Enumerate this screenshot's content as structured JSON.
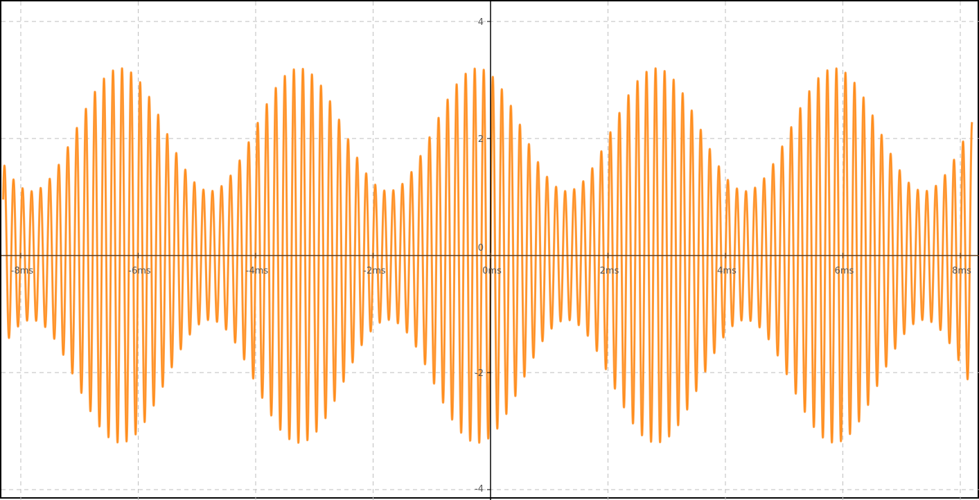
{
  "chart_data": {
    "type": "line",
    "title": "",
    "xlabel": "",
    "ylabel": "",
    "x_unit": "ms",
    "xlim": [
      -8.3,
      8.2
    ],
    "ylim": [
      -4.0,
      4.0
    ],
    "grid": true,
    "x_ticks": [
      -8,
      -6,
      -4,
      -2,
      0,
      2,
      4,
      6,
      8
    ],
    "x_tick_labels": [
      "-8ms",
      "-6ms",
      "-4ms",
      "-2ms",
      "0ms",
      "2ms",
      "4ms",
      "6ms",
      "8ms"
    ],
    "y_ticks": [
      -4,
      -2,
      0,
      2,
      4
    ],
    "y_tick_labels": [
      "-4",
      "-2",
      "0",
      "2",
      "4"
    ],
    "series": [
      {
        "color": "#ff8c1a",
        "fill_color": "#ffa855",
        "carrier_period_ms": 0.154,
        "envelope_period_ms": 3.04,
        "envelope_peak_time_ms": -0.22,
        "envelope_max": 3.2,
        "envelope_min": 1.1
      }
    ]
  }
}
